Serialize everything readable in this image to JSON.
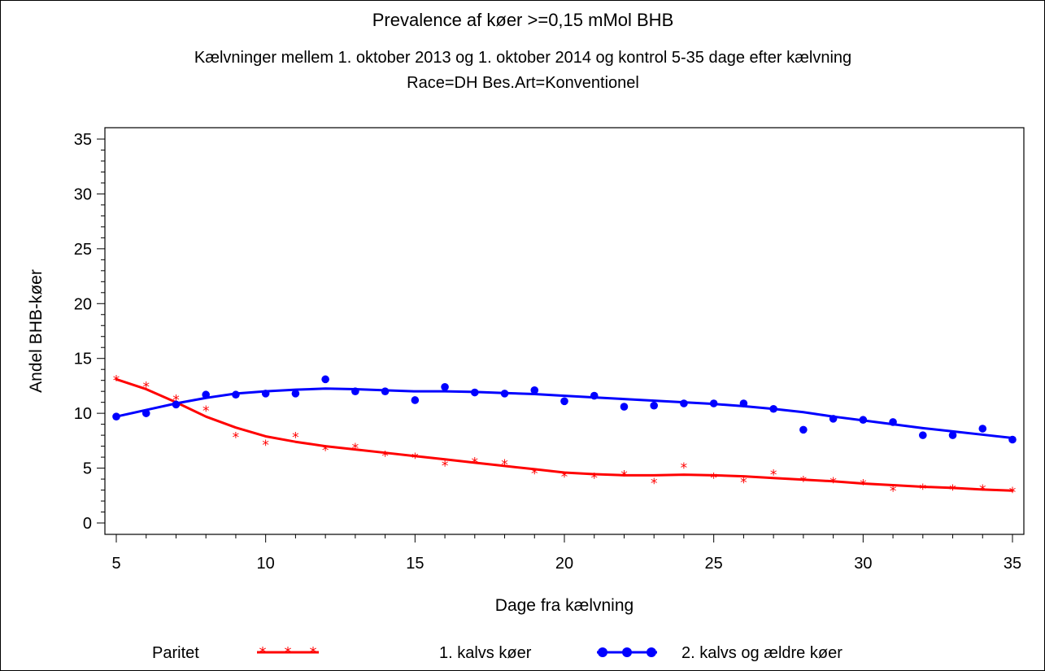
{
  "chart_data": {
    "type": "scatter",
    "title": "Prevalence af køer >=0,15 mMol BHB",
    "subtitle_1": "Kælvninger mellem 1. oktober 2013 og 1. oktober 2014 og kontrol 5-35 dage efter kælvning",
    "subtitle_2": "Race=DH  Bes.Art=Konventionel",
    "xlabel": "Dage fra kælvning",
    "ylabel": "Andel BHB-køer",
    "xlim": [
      5,
      35
    ],
    "ylim": [
      0,
      35
    ],
    "x_ticks": [
      "5",
      "10",
      "15",
      "20",
      "25",
      "30",
      "35"
    ],
    "y_ticks": [
      "0",
      "5",
      "10",
      "15",
      "20",
      "25",
      "30",
      "35"
    ],
    "legend": {
      "title": "Paritet",
      "placement": "bottom"
    },
    "series": [
      {
        "name": "1. kalvs køer",
        "color": "#ff0000",
        "marker": "star",
        "points": [
          [
            5,
            13.1
          ],
          [
            6,
            12.5
          ],
          [
            7,
            11.3
          ],
          [
            8,
            10.3
          ],
          [
            9,
            7.9
          ],
          [
            10,
            7.2
          ],
          [
            11,
            7.9
          ],
          [
            12,
            6.7
          ],
          [
            13,
            6.9
          ],
          [
            14,
            6.2
          ],
          [
            15,
            6.0
          ],
          [
            16,
            5.3
          ],
          [
            17,
            5.6
          ],
          [
            18,
            5.4
          ],
          [
            19,
            4.6
          ],
          [
            20,
            4.3
          ],
          [
            21,
            4.2
          ],
          [
            22,
            4.4
          ],
          [
            23,
            3.7
          ],
          [
            24,
            5.1
          ],
          [
            25,
            4.2
          ],
          [
            26,
            3.8
          ],
          [
            27,
            4.5
          ],
          [
            28,
            3.9
          ],
          [
            29,
            3.8
          ],
          [
            30,
            3.6
          ],
          [
            31,
            3.0
          ],
          [
            32,
            3.2
          ],
          [
            33,
            3.1
          ],
          [
            34,
            3.1
          ],
          [
            35,
            2.9
          ]
        ],
        "smooth": [
          [
            5,
            13.1
          ],
          [
            6,
            12.2
          ],
          [
            7,
            11.0
          ],
          [
            8,
            9.7
          ],
          [
            9,
            8.7
          ],
          [
            10,
            7.9
          ],
          [
            11,
            7.4
          ],
          [
            12,
            7.0
          ],
          [
            13,
            6.7
          ],
          [
            14,
            6.4
          ],
          [
            15,
            6.1
          ],
          [
            16,
            5.8
          ],
          [
            17,
            5.5
          ],
          [
            18,
            5.2
          ],
          [
            19,
            4.9
          ],
          [
            20,
            4.6
          ],
          [
            21,
            4.45
          ],
          [
            22,
            4.35
          ],
          [
            23,
            4.35
          ],
          [
            24,
            4.4
          ],
          [
            25,
            4.35
          ],
          [
            26,
            4.25
          ],
          [
            27,
            4.1
          ],
          [
            28,
            3.95
          ],
          [
            29,
            3.8
          ],
          [
            30,
            3.6
          ],
          [
            31,
            3.45
          ],
          [
            32,
            3.3
          ],
          [
            33,
            3.2
          ],
          [
            34,
            3.05
          ],
          [
            35,
            2.95
          ]
        ]
      },
      {
        "name": "2. kalvs og ældre køer",
        "color": "#0000ff",
        "marker": "dot",
        "points": [
          [
            5,
            9.7
          ],
          [
            6,
            10.0
          ],
          [
            7,
            10.8
          ],
          [
            8,
            11.7
          ],
          [
            9,
            11.7
          ],
          [
            10,
            11.8
          ],
          [
            11,
            11.8
          ],
          [
            12,
            13.1
          ],
          [
            13,
            12.0
          ],
          [
            14,
            12.0
          ],
          [
            15,
            11.2
          ],
          [
            16,
            12.4
          ],
          [
            17,
            11.9
          ],
          [
            18,
            11.8
          ],
          [
            19,
            12.1
          ],
          [
            20,
            11.1
          ],
          [
            21,
            11.6
          ],
          [
            22,
            10.6
          ],
          [
            23,
            10.7
          ],
          [
            24,
            10.9
          ],
          [
            25,
            10.9
          ],
          [
            26,
            10.9
          ],
          [
            27,
            10.4
          ],
          [
            28,
            8.5
          ],
          [
            29,
            9.5
          ],
          [
            30,
            9.4
          ],
          [
            31,
            9.2
          ],
          [
            32,
            8.0
          ],
          [
            33,
            8.0
          ],
          [
            34,
            8.6
          ],
          [
            35,
            7.6
          ]
        ],
        "smooth": [
          [
            5,
            9.7
          ],
          [
            6,
            10.3
          ],
          [
            7,
            10.9
          ],
          [
            8,
            11.4
          ],
          [
            9,
            11.8
          ],
          [
            10,
            12.0
          ],
          [
            11,
            12.15
          ],
          [
            12,
            12.25
          ],
          [
            13,
            12.2
          ],
          [
            14,
            12.1
          ],
          [
            15,
            12.0
          ],
          [
            16,
            12.0
          ],
          [
            17,
            11.95
          ],
          [
            18,
            11.85
          ],
          [
            19,
            11.75
          ],
          [
            20,
            11.6
          ],
          [
            21,
            11.45
          ],
          [
            22,
            11.3
          ],
          [
            23,
            11.15
          ],
          [
            24,
            11.0
          ],
          [
            25,
            10.85
          ],
          [
            26,
            10.65
          ],
          [
            27,
            10.4
          ],
          [
            28,
            10.1
          ],
          [
            29,
            9.7
          ],
          [
            30,
            9.35
          ],
          [
            31,
            9.0
          ],
          [
            32,
            8.65
          ],
          [
            33,
            8.35
          ],
          [
            34,
            8.05
          ],
          [
            35,
            7.75
          ]
        ]
      }
    ]
  }
}
